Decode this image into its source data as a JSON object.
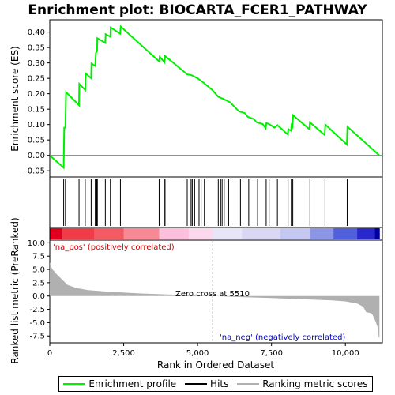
{
  "chart_data": {
    "type": "line",
    "title": "Enrichment plot: BIOCARTA_FCER1_PATHWAY",
    "xlabel": "Rank in Ordered Dataset",
    "es_ylabel": "Enrichment score (ES)",
    "metric_ylabel": "Ranked list metric (PreRanked)",
    "xlim": [
      0,
      11250
    ],
    "es_ylim": [
      -0.07,
      0.44
    ],
    "metric_ylim": [
      -8.8,
      10.5
    ],
    "x_ticks": [
      0,
      2500,
      5000,
      7500,
      10000
    ],
    "x_tick_labels": [
      "0",
      "2,500",
      "5,000",
      "7,500",
      "10,000"
    ],
    "es_ticks": [
      -0.05,
      0.0,
      0.05,
      0.1,
      0.15,
      0.2,
      0.25,
      0.3,
      0.35,
      0.4
    ],
    "es_tick_labels": [
      "-0.05",
      "0.00",
      "0.05",
      "0.10",
      "0.15",
      "0.20",
      "0.25",
      "0.30",
      "0.35",
      "0.40"
    ],
    "metric_ticks": [
      10.0,
      7.5,
      5.0,
      2.5,
      0.0,
      -2.5,
      -5.0,
      -7.5
    ],
    "metric_tick_labels": [
      "10.0",
      "7.5",
      "5.0",
      "2.5",
      "0.0",
      "-2.5",
      "-5.0",
      "-7.5"
    ],
    "colors": {
      "es_line": "#00ee00",
      "hits": "#000000",
      "metric_fill": "#b0b0b0",
      "zero_line": "#999999",
      "pos_label": "#cc0000",
      "neg_label": "#0000cc"
    },
    "es_series": {
      "name": "Enrichment profile",
      "points": [
        [
          0,
          0.0
        ],
        [
          470,
          -0.04
        ],
        [
          490,
          0.09
        ],
        [
          530,
          0.09
        ],
        [
          550,
          0.205
        ],
        [
          990,
          0.163
        ],
        [
          1000,
          0.232
        ],
        [
          1200,
          0.212
        ],
        [
          1210,
          0.266
        ],
        [
          1400,
          0.25
        ],
        [
          1410,
          0.298
        ],
        [
          1540,
          0.29
        ],
        [
          1560,
          0.333
        ],
        [
          1600,
          0.338
        ],
        [
          1610,
          0.38
        ],
        [
          1880,
          0.365
        ],
        [
          1890,
          0.393
        ],
        [
          2050,
          0.385
        ],
        [
          2060,
          0.415
        ],
        [
          2380,
          0.395
        ],
        [
          2400,
          0.418
        ],
        [
          3700,
          0.305
        ],
        [
          3720,
          0.32
        ],
        [
          3880,
          0.302
        ],
        [
          3900,
          0.323
        ],
        [
          4650,
          0.263
        ],
        [
          4800,
          0.26
        ],
        [
          5000,
          0.25
        ],
        [
          5200,
          0.236
        ],
        [
          5500,
          0.212
        ],
        [
          5700,
          0.19
        ],
        [
          5900,
          0.182
        ],
        [
          6100,
          0.172
        ],
        [
          6400,
          0.143
        ],
        [
          6600,
          0.137
        ],
        [
          6700,
          0.125
        ],
        [
          6900,
          0.118
        ],
        [
          7000,
          0.107
        ],
        [
          7200,
          0.102
        ],
        [
          7300,
          0.088
        ],
        [
          7330,
          0.105
        ],
        [
          7450,
          0.1
        ],
        [
          7600,
          0.09
        ],
        [
          7700,
          0.098
        ],
        [
          8050,
          0.068
        ],
        [
          8070,
          0.085
        ],
        [
          8160,
          0.08
        ],
        [
          8180,
          0.098
        ],
        [
          8210,
          0.093
        ],
        [
          8230,
          0.13
        ],
        [
          8780,
          0.085
        ],
        [
          8800,
          0.107
        ],
        [
          9300,
          0.066
        ],
        [
          9320,
          0.1
        ],
        [
          10050,
          0.035
        ],
        [
          10070,
          0.093
        ],
        [
          11150,
          0.0
        ]
      ]
    },
    "hits": [
      470,
      530,
      990,
      1200,
      1400,
      1540,
      1590,
      1610,
      1880,
      2050,
      2390,
      3700,
      3870,
      3900,
      4650,
      4780,
      4820,
      4900,
      5050,
      5120,
      5230,
      5700,
      5780,
      5830,
      5900,
      6050,
      6450,
      6730,
      7030,
      7320,
      7420,
      7700,
      8060,
      8170,
      8220,
      8800,
      9310,
      10060
    ],
    "metric_profile": [
      [
        0,
        6.3
      ],
      [
        80,
        5.1
      ],
      [
        200,
        4.3
      ],
      [
        400,
        3.2
      ],
      [
        600,
        2.1
      ],
      [
        900,
        1.5
      ],
      [
        1300,
        1.1
      ],
      [
        2000,
        0.8
      ],
      [
        3000,
        0.5
      ],
      [
        4000,
        0.3
      ],
      [
        5000,
        0.12
      ],
      [
        5510,
        0.0
      ],
      [
        6500,
        -0.2
      ],
      [
        7500,
        -0.38
      ],
      [
        8500,
        -0.6
      ],
      [
        9500,
        -0.8
      ],
      [
        10000,
        -1.0
      ],
      [
        10400,
        -1.4
      ],
      [
        10600,
        -2.0
      ],
      [
        10700,
        -3.0
      ],
      [
        10900,
        -3.3
      ],
      [
        11000,
        -4.5
      ],
      [
        11100,
        -6.0
      ],
      [
        11130,
        -7.8
      ],
      [
        11150,
        -7.8
      ]
    ],
    "gradient_colors": [
      [
        0,
        "#e0001e"
      ],
      [
        400,
        "#f03c46"
      ],
      [
        1500,
        "#f45a64"
      ],
      [
        2500,
        "#f88a96"
      ],
      [
        3700,
        "#fcc0dc"
      ],
      [
        4700,
        "#fcd8ec"
      ],
      [
        5500,
        "#e6e6f8"
      ],
      [
        6500,
        "#d8d8f4"
      ],
      [
        7800,
        "#c4c8f0"
      ],
      [
        8800,
        "#8c96e6"
      ],
      [
        9600,
        "#5060dc"
      ],
      [
        10400,
        "#2828cc"
      ],
      [
        11000,
        "#0000a0"
      ],
      [
        11150,
        "#0000a0"
      ]
    ],
    "annotations": {
      "pos_label": "'na_pos' (positively correlated)",
      "neg_label": "'na_neg' (negatively correlated)",
      "zero_cross": "Zero cross at 5510",
      "zero_cross_rank": 5510
    },
    "legend": [
      {
        "label": "Enrichment profile",
        "color": "#00ee00"
      },
      {
        "label": "Hits",
        "color": "#000000"
      },
      {
        "label": "Ranking metric scores",
        "color": "#b0b0b0"
      }
    ],
    "legend_placement": "bottom"
  }
}
